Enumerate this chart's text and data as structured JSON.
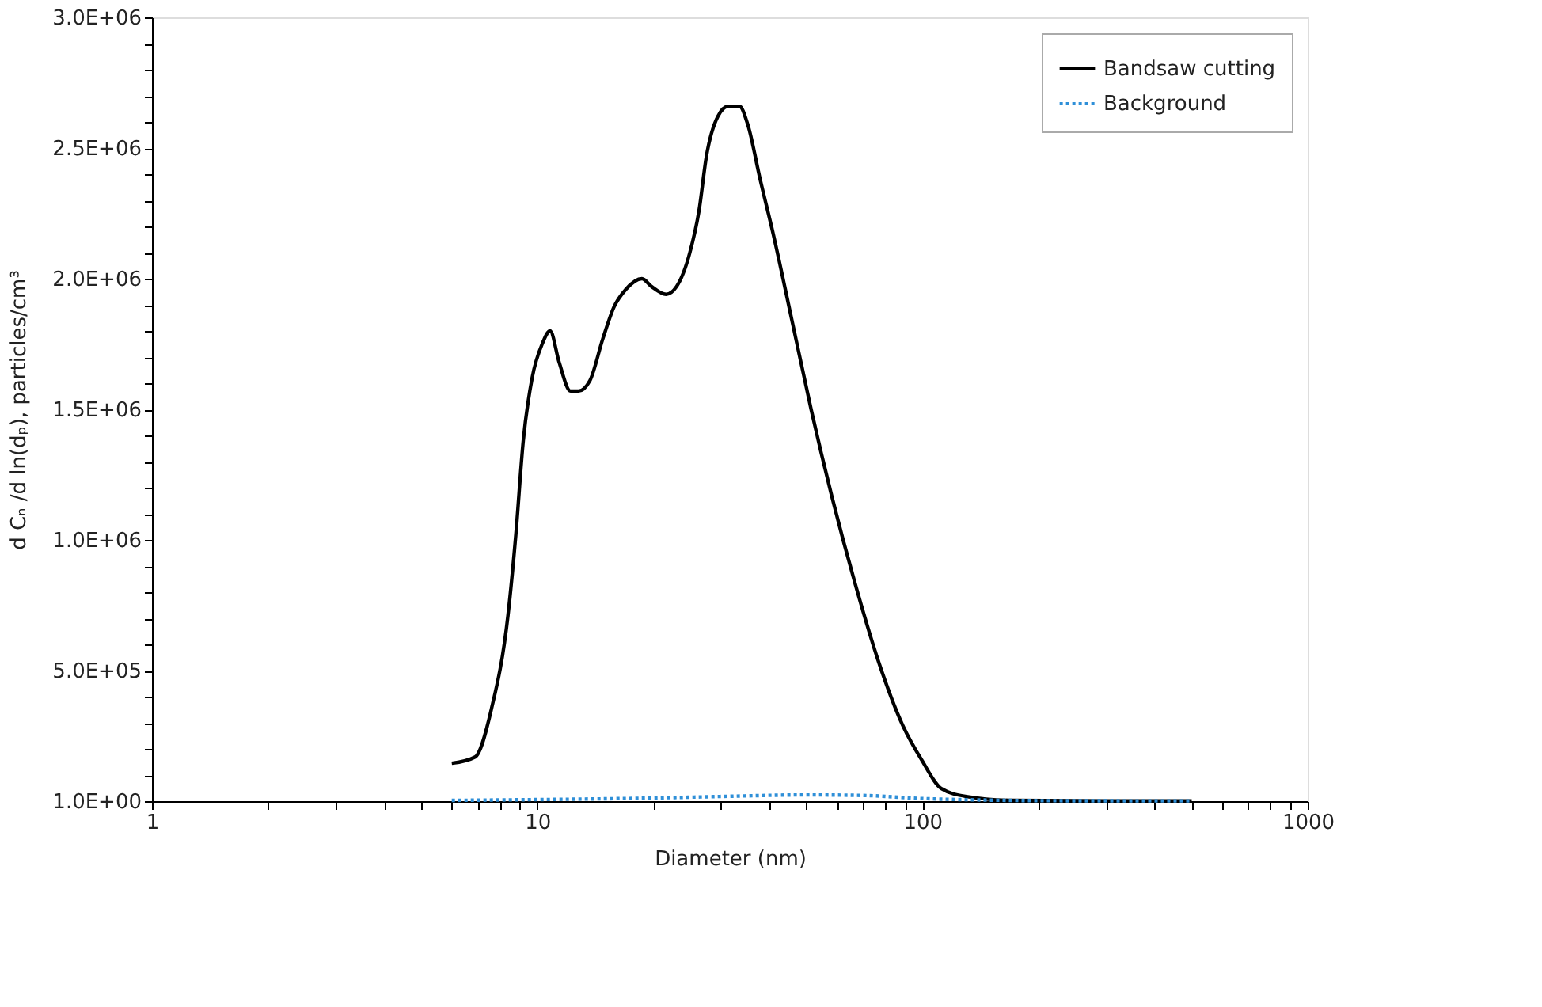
{
  "chart_data": {
    "type": "line",
    "xlabel": "Diameter (nm)",
    "ylabel": "d Cₙ /d ln(dₚ), particles/cm³",
    "log": "x",
    "grid": false,
    "legend": "top right",
    "marker": "none",
    "xlim": [
      1,
      1000
    ],
    "ylim": [
      1,
      3000000
    ],
    "xticks": [
      1,
      {
        "value": 2,
        "label": null
      },
      {
        "value": 3,
        "label": null
      },
      {
        "value": 4,
        "label": null
      },
      {
        "value": 5,
        "label": null
      },
      {
        "value": 6,
        "label": null
      },
      {
        "value": 7,
        "label": null
      },
      {
        "value": 8,
        "label": null
      },
      {
        "value": 9,
        "label": null
      },
      10,
      {
        "value": 20,
        "label": null
      },
      {
        "value": 30,
        "label": null
      },
      {
        "value": 40,
        "label": null
      },
      {
        "value": 50,
        "label": null
      },
      {
        "value": 60,
        "label": null
      },
      {
        "value": 70,
        "label": null
      },
      {
        "value": 80,
        "label": null
      },
      {
        "value": 90,
        "label": null
      },
      100,
      {
        "value": 200,
        "label": null
      },
      {
        "value": 300,
        "label": null
      },
      {
        "value": 400,
        "label": null
      },
      {
        "value": 500,
        "label": null
      },
      {
        "value": 600,
        "label": null
      },
      {
        "value": 700,
        "label": null
      },
      {
        "value": 800,
        "label": null
      },
      {
        "value": 900,
        "label": null
      },
      1000
    ],
    "yticks": [
      {
        "value": 1,
        "label": "1.0E+00"
      },
      {
        "value": 100000,
        "label": null
      },
      {
        "value": 200000,
        "label": null
      },
      {
        "value": 300000,
        "label": null
      },
      {
        "value": 400000,
        "label": null
      },
      {
        "value": 500000,
        "label": "5.0E+05"
      },
      {
        "value": 600000,
        "label": null
      },
      {
        "value": 700000,
        "label": null
      },
      {
        "value": 800000,
        "label": null
      },
      {
        "value": 900000,
        "label": null
      },
      {
        "value": 1000000,
        "label": "1.0E+06"
      },
      {
        "value": 1100000,
        "label": null
      },
      {
        "value": 1200000,
        "label": null
      },
      {
        "value": 1300000,
        "label": null
      },
      {
        "value": 1400000,
        "label": null
      },
      {
        "value": 1500000,
        "label": "1.5E+06"
      },
      {
        "value": 1600000,
        "label": null
      },
      {
        "value": 1700000,
        "label": null
      },
      {
        "value": 1800000,
        "label": null
      },
      {
        "value": 1900000,
        "label": null
      },
      {
        "value": 2000000,
        "label": "2.0E+06"
      },
      {
        "value": 2100000,
        "label": null
      },
      {
        "value": 2200000,
        "label": null
      },
      {
        "value": 2300000,
        "label": null
      },
      {
        "value": 2400000,
        "label": null
      },
      {
        "value": 2500000,
        "label": "2.5E+06"
      },
      {
        "value": 2600000,
        "label": null
      },
      {
        "value": 2700000,
        "label": null
      },
      {
        "value": 2800000,
        "label": null
      },
      {
        "value": 2900000,
        "label": null
      },
      {
        "value": 3000000,
        "label": "3.0E+06"
      }
    ],
    "series": [
      {
        "name": "Bandsaw cutting",
        "color": "#000000",
        "line_style": "solid",
        "x": [
          6.0,
          6.9,
          7.6,
          8.4,
          8.8,
          9.2,
          9.7,
          10.3,
          10.8,
          11.4,
          12.2,
          12.8,
          13.7,
          14.8,
          15.8,
          17.0,
          18.7,
          19.8,
          21.6,
          23.0,
          24.9,
          26.3,
          27.5,
          29.4,
          31.3,
          33.5,
          35.2,
          37.9,
          41.0,
          46.0,
          51.4,
          58.1,
          66.8,
          77.0,
          88.9,
          99.6,
          112,
          130,
          172,
          300,
          500
        ],
        "values": [
          145000,
          169000,
          351000,
          714000,
          1020000,
          1380000,
          1620000,
          1750000,
          1800000,
          1680000,
          1570000,
          1570000,
          1610000,
          1770000,
          1890000,
          1960000,
          2000000,
          1970000,
          1940000,
          1970000,
          2100000,
          2260000,
          2470000,
          2620000,
          2660000,
          2660000,
          2590000,
          2380000,
          2170000,
          1830000,
          1500000,
          1170000,
          835000,
          532000,
          290000,
          157000,
          48000,
          18000,
          3000,
          1000,
          1000
        ]
      },
      {
        "name": "Background",
        "color": "#2e8fd8",
        "line_style": "dotted",
        "x": [
          6.0,
          10,
          20,
          30,
          50,
          70,
          100,
          150,
          200,
          500
        ],
        "values": [
          3000,
          6000,
          12000,
          18000,
          24000,
          22000,
          10000,
          4000,
          2000,
          1000
        ]
      }
    ]
  }
}
